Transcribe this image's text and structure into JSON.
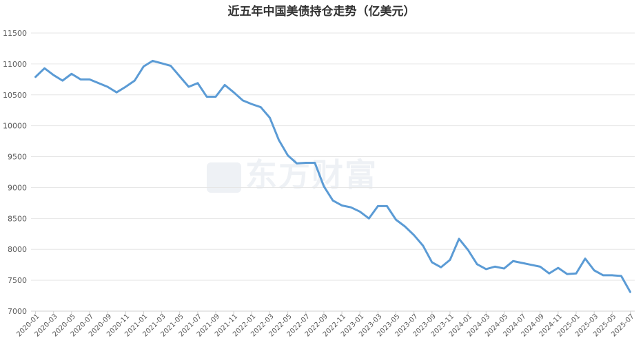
{
  "chart_data": {
    "type": "line",
    "title": "近五年中国美债持仓走势（亿美元）",
    "xlabel": "",
    "ylabel": "",
    "ylim": [
      7000,
      11500
    ],
    "ytick_step": 500,
    "grid": true,
    "legend": "none",
    "watermark": "东方财富",
    "line_color": "#5b9bd5",
    "x_tick_labels": [
      "2020-01",
      "2020-03",
      "2020-05",
      "2020-07",
      "2020-09",
      "2020-11",
      "2021-01",
      "2021-03",
      "2021-05",
      "2021-07",
      "2021-09",
      "2021-11",
      "2022-01",
      "2022-03",
      "2022-05",
      "2022-07",
      "2022-09",
      "2022-11",
      "2023-01",
      "2023-03",
      "2023-05",
      "2023-07",
      "2023-09",
      "2023-11",
      "2024-01",
      "2024-03",
      "2024-05",
      "2024-07",
      "2024-09",
      "2024-11",
      "2025-01",
      "2025-03",
      "2025-05",
      "2025-07"
    ],
    "x": [
      "2020-01",
      "2020-02",
      "2020-03",
      "2020-04",
      "2020-05",
      "2020-06",
      "2020-07",
      "2020-08",
      "2020-09",
      "2020-10",
      "2020-11",
      "2020-12",
      "2021-01",
      "2021-02",
      "2021-03",
      "2021-04",
      "2021-05",
      "2021-06",
      "2021-07",
      "2021-08",
      "2021-09",
      "2021-10",
      "2021-11",
      "2021-12",
      "2022-01",
      "2022-02",
      "2022-03",
      "2022-04",
      "2022-05",
      "2022-06",
      "2022-07",
      "2022-08",
      "2022-09",
      "2022-10",
      "2022-11",
      "2022-12",
      "2023-01",
      "2023-02",
      "2023-03",
      "2023-04",
      "2023-05",
      "2023-06",
      "2023-07",
      "2023-08",
      "2023-09",
      "2023-10",
      "2023-11",
      "2023-12",
      "2024-01",
      "2024-02",
      "2024-03",
      "2024-04",
      "2024-05",
      "2024-06",
      "2024-07",
      "2024-08",
      "2024-09",
      "2024-10",
      "2024-11",
      "2024-12",
      "2025-01",
      "2025-02",
      "2025-03",
      "2025-04",
      "2025-05",
      "2025-06",
      "2025-07"
    ],
    "series": [
      {
        "values": [
          10790,
          10930,
          10820,
          10730,
          10840,
          10750,
          10750,
          10690,
          10630,
          10540,
          10630,
          10730,
          10960,
          11050,
          11010,
          10970,
          10800,
          10630,
          10690,
          10470,
          10470,
          10660,
          10540,
          10410,
          10350,
          10300,
          10130,
          9770,
          9520,
          9390,
          9400,
          9400,
          9020,
          8790,
          8710,
          8680,
          8610,
          8500,
          8700,
          8700,
          8480,
          8370,
          8230,
          8060,
          7790,
          7710,
          7830,
          8170,
          7990,
          7760,
          7680,
          7720,
          7690,
          7810,
          7780,
          7750,
          7720,
          7610,
          7700,
          7600,
          7610,
          7850,
          7660,
          7580,
          7580,
          7570,
          7310
        ]
      }
    ]
  }
}
